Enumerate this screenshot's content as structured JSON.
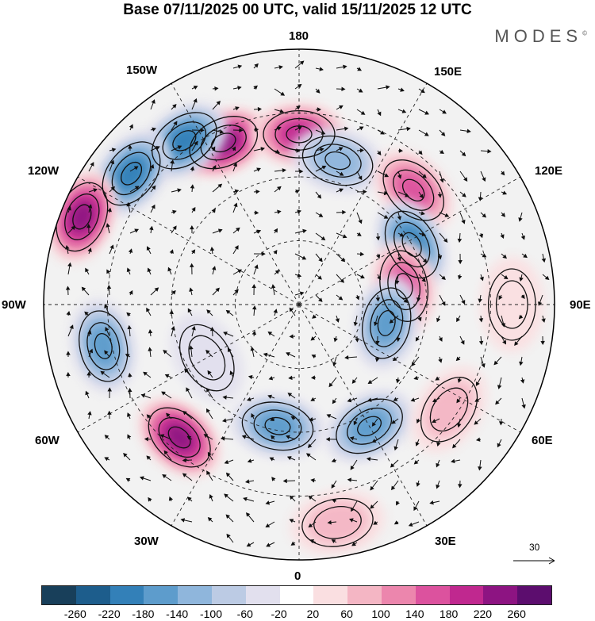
{
  "title": "Base 07/11/2025 00 UTC, valid 15/11/2025 12 UTC",
  "brand": "MODES",
  "brand_mark": "©",
  "longitude_labels": {
    "top": "180",
    "bottom": "0",
    "left": "90W",
    "right": "90E",
    "upper_left_1": "150W",
    "upper_left_2": "120W",
    "lower_left_1": "60W",
    "lower_left_2": "30W",
    "upper_right_1": "150E",
    "upper_right_2": "120E",
    "lower_right_1": "60E",
    "lower_right_2": "30E"
  },
  "reference_vector": {
    "label": "30"
  },
  "colorbar": {
    "colors": [
      "#183f5a",
      "#1d5d8c",
      "#3380b8",
      "#5d9ccc",
      "#8fb6dc",
      "#bccbe4",
      "#e2e0ee",
      "#ffffff",
      "#fadfe1",
      "#f4b6c4",
      "#ec86ad",
      "#dc529e",
      "#c0288f",
      "#8d1482",
      "#5c0d6e"
    ],
    "labels": [
      "-260",
      "-220",
      "-180",
      "-140",
      "-100",
      "-60",
      "-20",
      "20",
      "60",
      "100",
      "140",
      "180",
      "220",
      "260"
    ]
  },
  "anomalies": [
    {
      "id": "a1",
      "value": 240,
      "lon": -155,
      "colat": 42
    },
    {
      "id": "a2",
      "value": -220,
      "lon": -145,
      "colat": 47
    },
    {
      "id": "a3",
      "value": -200,
      "lon": -128,
      "colat": 50
    },
    {
      "id": "a4",
      "value": 220,
      "lon": -180,
      "colat": 40
    },
    {
      "id": "a5",
      "value": -120,
      "lon": 165,
      "colat": 35
    },
    {
      "id": "a6",
      "value": 160,
      "lon": 135,
      "colat": 38
    },
    {
      "id": "a7",
      "value": -200,
      "lon": 118,
      "colat": 30
    },
    {
      "id": "a8",
      "value": 180,
      "lon": 100,
      "colat": 25
    },
    {
      "id": "a9",
      "value": -180,
      "lon": 78,
      "colat": 21
    },
    {
      "id": "a10",
      "value": 240,
      "lon": -112,
      "colat": 55
    },
    {
      "id": "a11",
      "value": -160,
      "lon": -78,
      "colat": 47
    },
    {
      "id": "a12",
      "value": 260,
      "lon": -42,
      "colat": 42
    },
    {
      "id": "a13",
      "value": -160,
      "lon": -10,
      "colat": 29
    },
    {
      "id": "a14",
      "value": -160,
      "lon": 30,
      "colat": 33
    },
    {
      "id": "a15",
      "value": 100,
      "lon": 55,
      "colat": 43
    },
    {
      "id": "a16",
      "value": 80,
      "lon": 10,
      "colat": 52
    },
    {
      "id": "a17",
      "value": 60,
      "lon": 90,
      "colat": 50
    },
    {
      "id": "a18",
      "value": -60,
      "lon": -60,
      "colat": 25
    }
  ]
}
